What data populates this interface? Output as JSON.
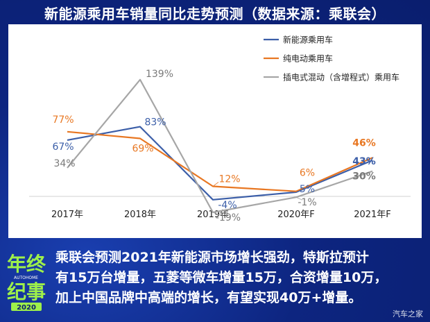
{
  "title": "新能源乘用车销量同比走势预测（数据来源：乘联会）",
  "caption": {
    "line1": "乘联会预测2021年新能源市场增长强劲，特斯拉预计",
    "line2": "有15万台增量，五菱等微车增量15万，合资增量10万，",
    "line3": "加上中国品牌中高端的增长，有望实现40万+增量。"
  },
  "logo": {
    "line1": "年终",
    "line2": "纪事",
    "brand": "AUTOHOME",
    "year": "2020"
  },
  "watermark": "汽车之家",
  "chart_data": {
    "type": "line",
    "title": "新能源乘用车销量同比走势预测（数据来源：乘联会）",
    "categories": [
      "2017年",
      "2018年",
      "2019年",
      "2020年F",
      "2021年F"
    ],
    "ylim": [
      -25,
      145
    ],
    "xlabel": "",
    "ylabel": "",
    "grid": false,
    "legend_position": "top-right",
    "series": [
      {
        "name": "新能源乘用车",
        "color": "#3b5ea8",
        "values": [
          67,
          83,
          -4,
          5,
          43
        ],
        "labels": [
          "67%",
          "83%",
          "-4%",
          "5%",
          "43%"
        ]
      },
      {
        "name": "纯电动乘用车",
        "color": "#e87722",
        "values": [
          77,
          69,
          12,
          6,
          46
        ],
        "labels": [
          "77%",
          "69%",
          "12%",
          "6%",
          "46%"
        ]
      },
      {
        "name": "插电式混动（含增程式）乘用车",
        "color": "#a6a6a6",
        "values": [
          34,
          139,
          -19,
          -1,
          30
        ],
        "labels": [
          "34%",
          "139%",
          "-19%",
          "-1%",
          "30%"
        ]
      }
    ]
  }
}
